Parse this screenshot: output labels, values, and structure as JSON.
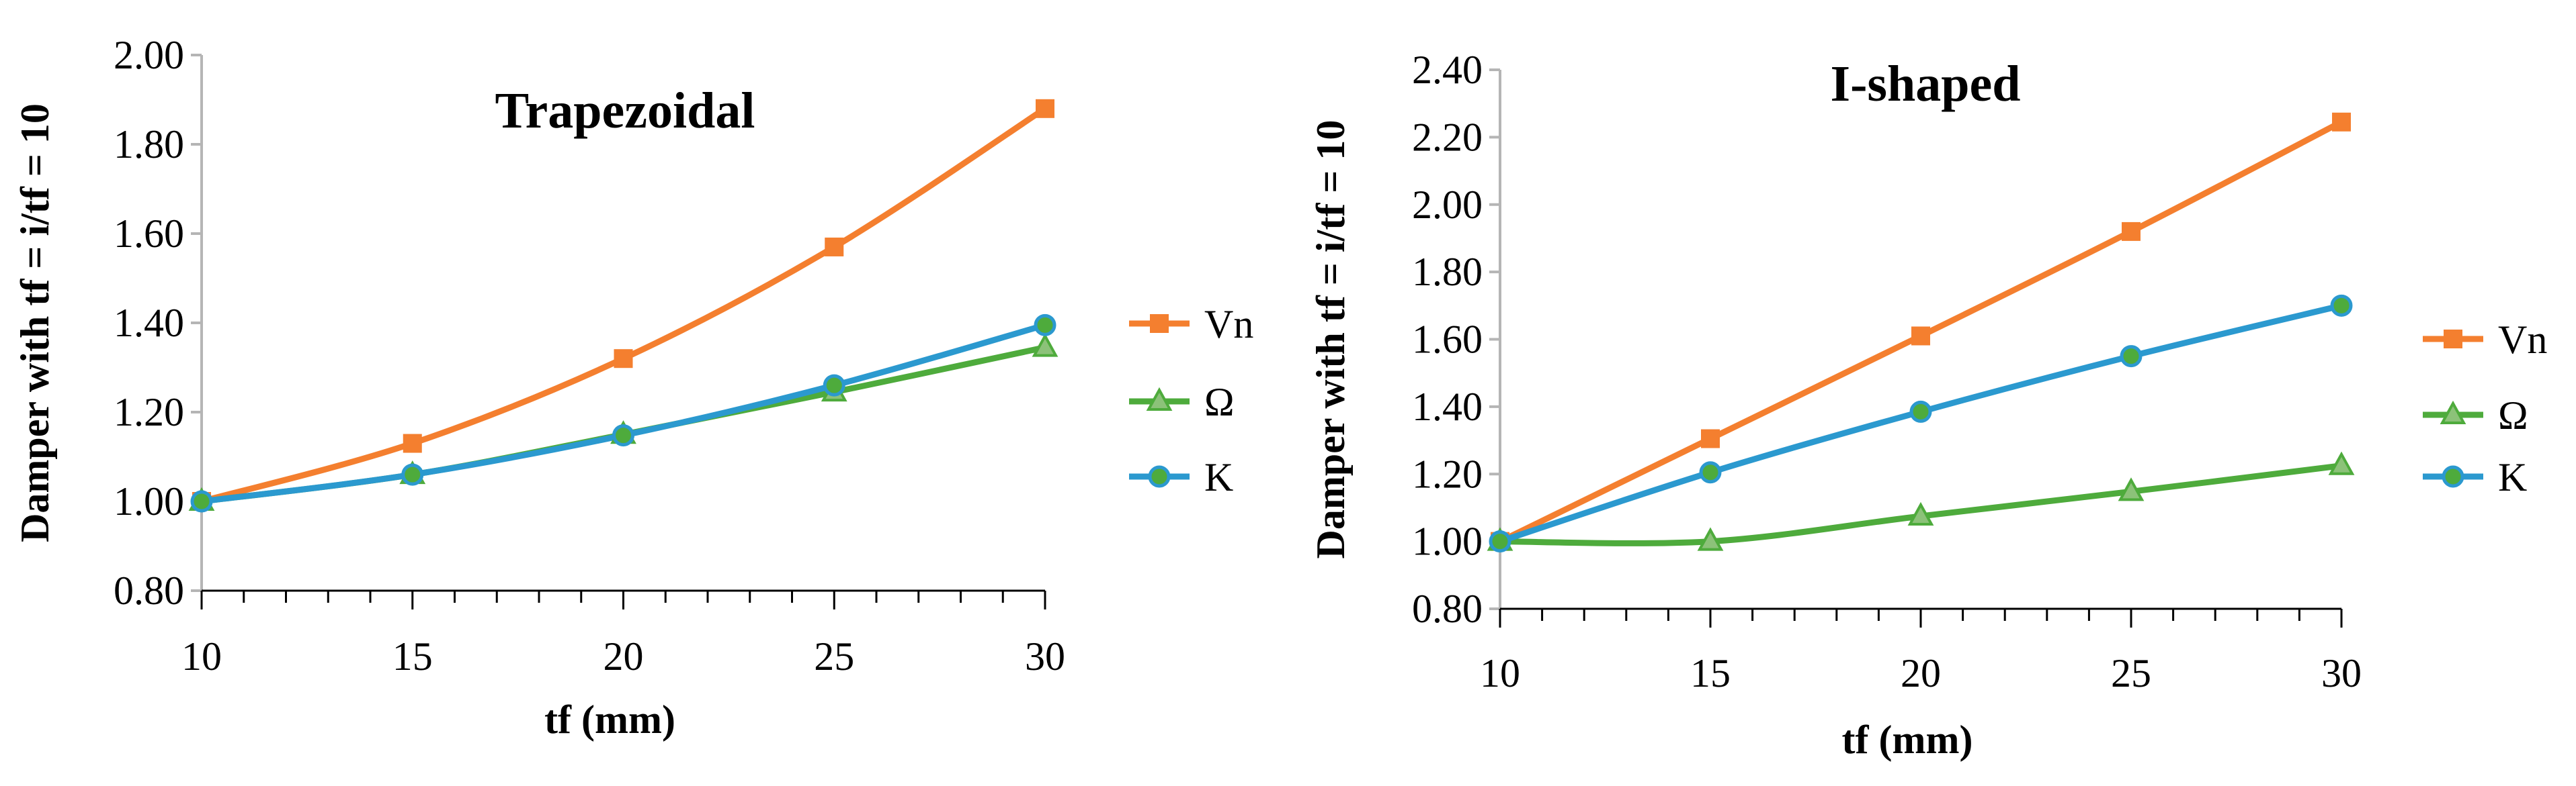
{
  "chart_data": [
    {
      "type": "line",
      "title": "Trapezoidal",
      "xlabel": "tf (mm)",
      "ylabel": "Damper with tf = i/tf = 10",
      "x": [
        10,
        15,
        20,
        25,
        30
      ],
      "xlim": [
        10,
        30
      ],
      "ylim": [
        0.8,
        2.0
      ],
      "ytick_step": 0.2,
      "x_minor_step": 1,
      "grid": false,
      "legend": "right",
      "series": [
        {
          "name": "Vn",
          "values": [
            1.0,
            1.13,
            1.32,
            1.57,
            1.88
          ],
          "color": "#f47f2f",
          "marker": "square"
        },
        {
          "name": "Ω",
          "values": [
            1.0,
            1.06,
            1.15,
            1.245,
            1.345
          ],
          "color": "#4eab3c",
          "marker": "triangle"
        },
        {
          "name": "K",
          "values": [
            1.0,
            1.06,
            1.148,
            1.26,
            1.395
          ],
          "color": "#2b99cf",
          "marker": "circle"
        }
      ]
    },
    {
      "type": "line",
      "title": "I-shaped",
      "xlabel": "tf (mm)",
      "ylabel": "Damper with tf = i/tf = 10",
      "x": [
        10,
        15,
        20,
        25,
        30
      ],
      "xlim": [
        10,
        30
      ],
      "ylim": [
        0.8,
        2.4
      ],
      "ytick_step": 0.2,
      "x_minor_step": 1,
      "grid": false,
      "legend": "right",
      "series": [
        {
          "name": "Vn",
          "values": [
            1.0,
            1.305,
            1.61,
            1.92,
            2.245
          ],
          "color": "#f47f2f",
          "marker": "square"
        },
        {
          "name": "Ω",
          "values": [
            1.0,
            1.0,
            1.075,
            1.148,
            1.225
          ],
          "color": "#4eab3c",
          "marker": "triangle"
        },
        {
          "name": "K",
          "values": [
            1.0,
            1.205,
            1.385,
            1.55,
            1.7
          ],
          "color": "#2b99cf",
          "marker": "circle"
        }
      ]
    }
  ]
}
